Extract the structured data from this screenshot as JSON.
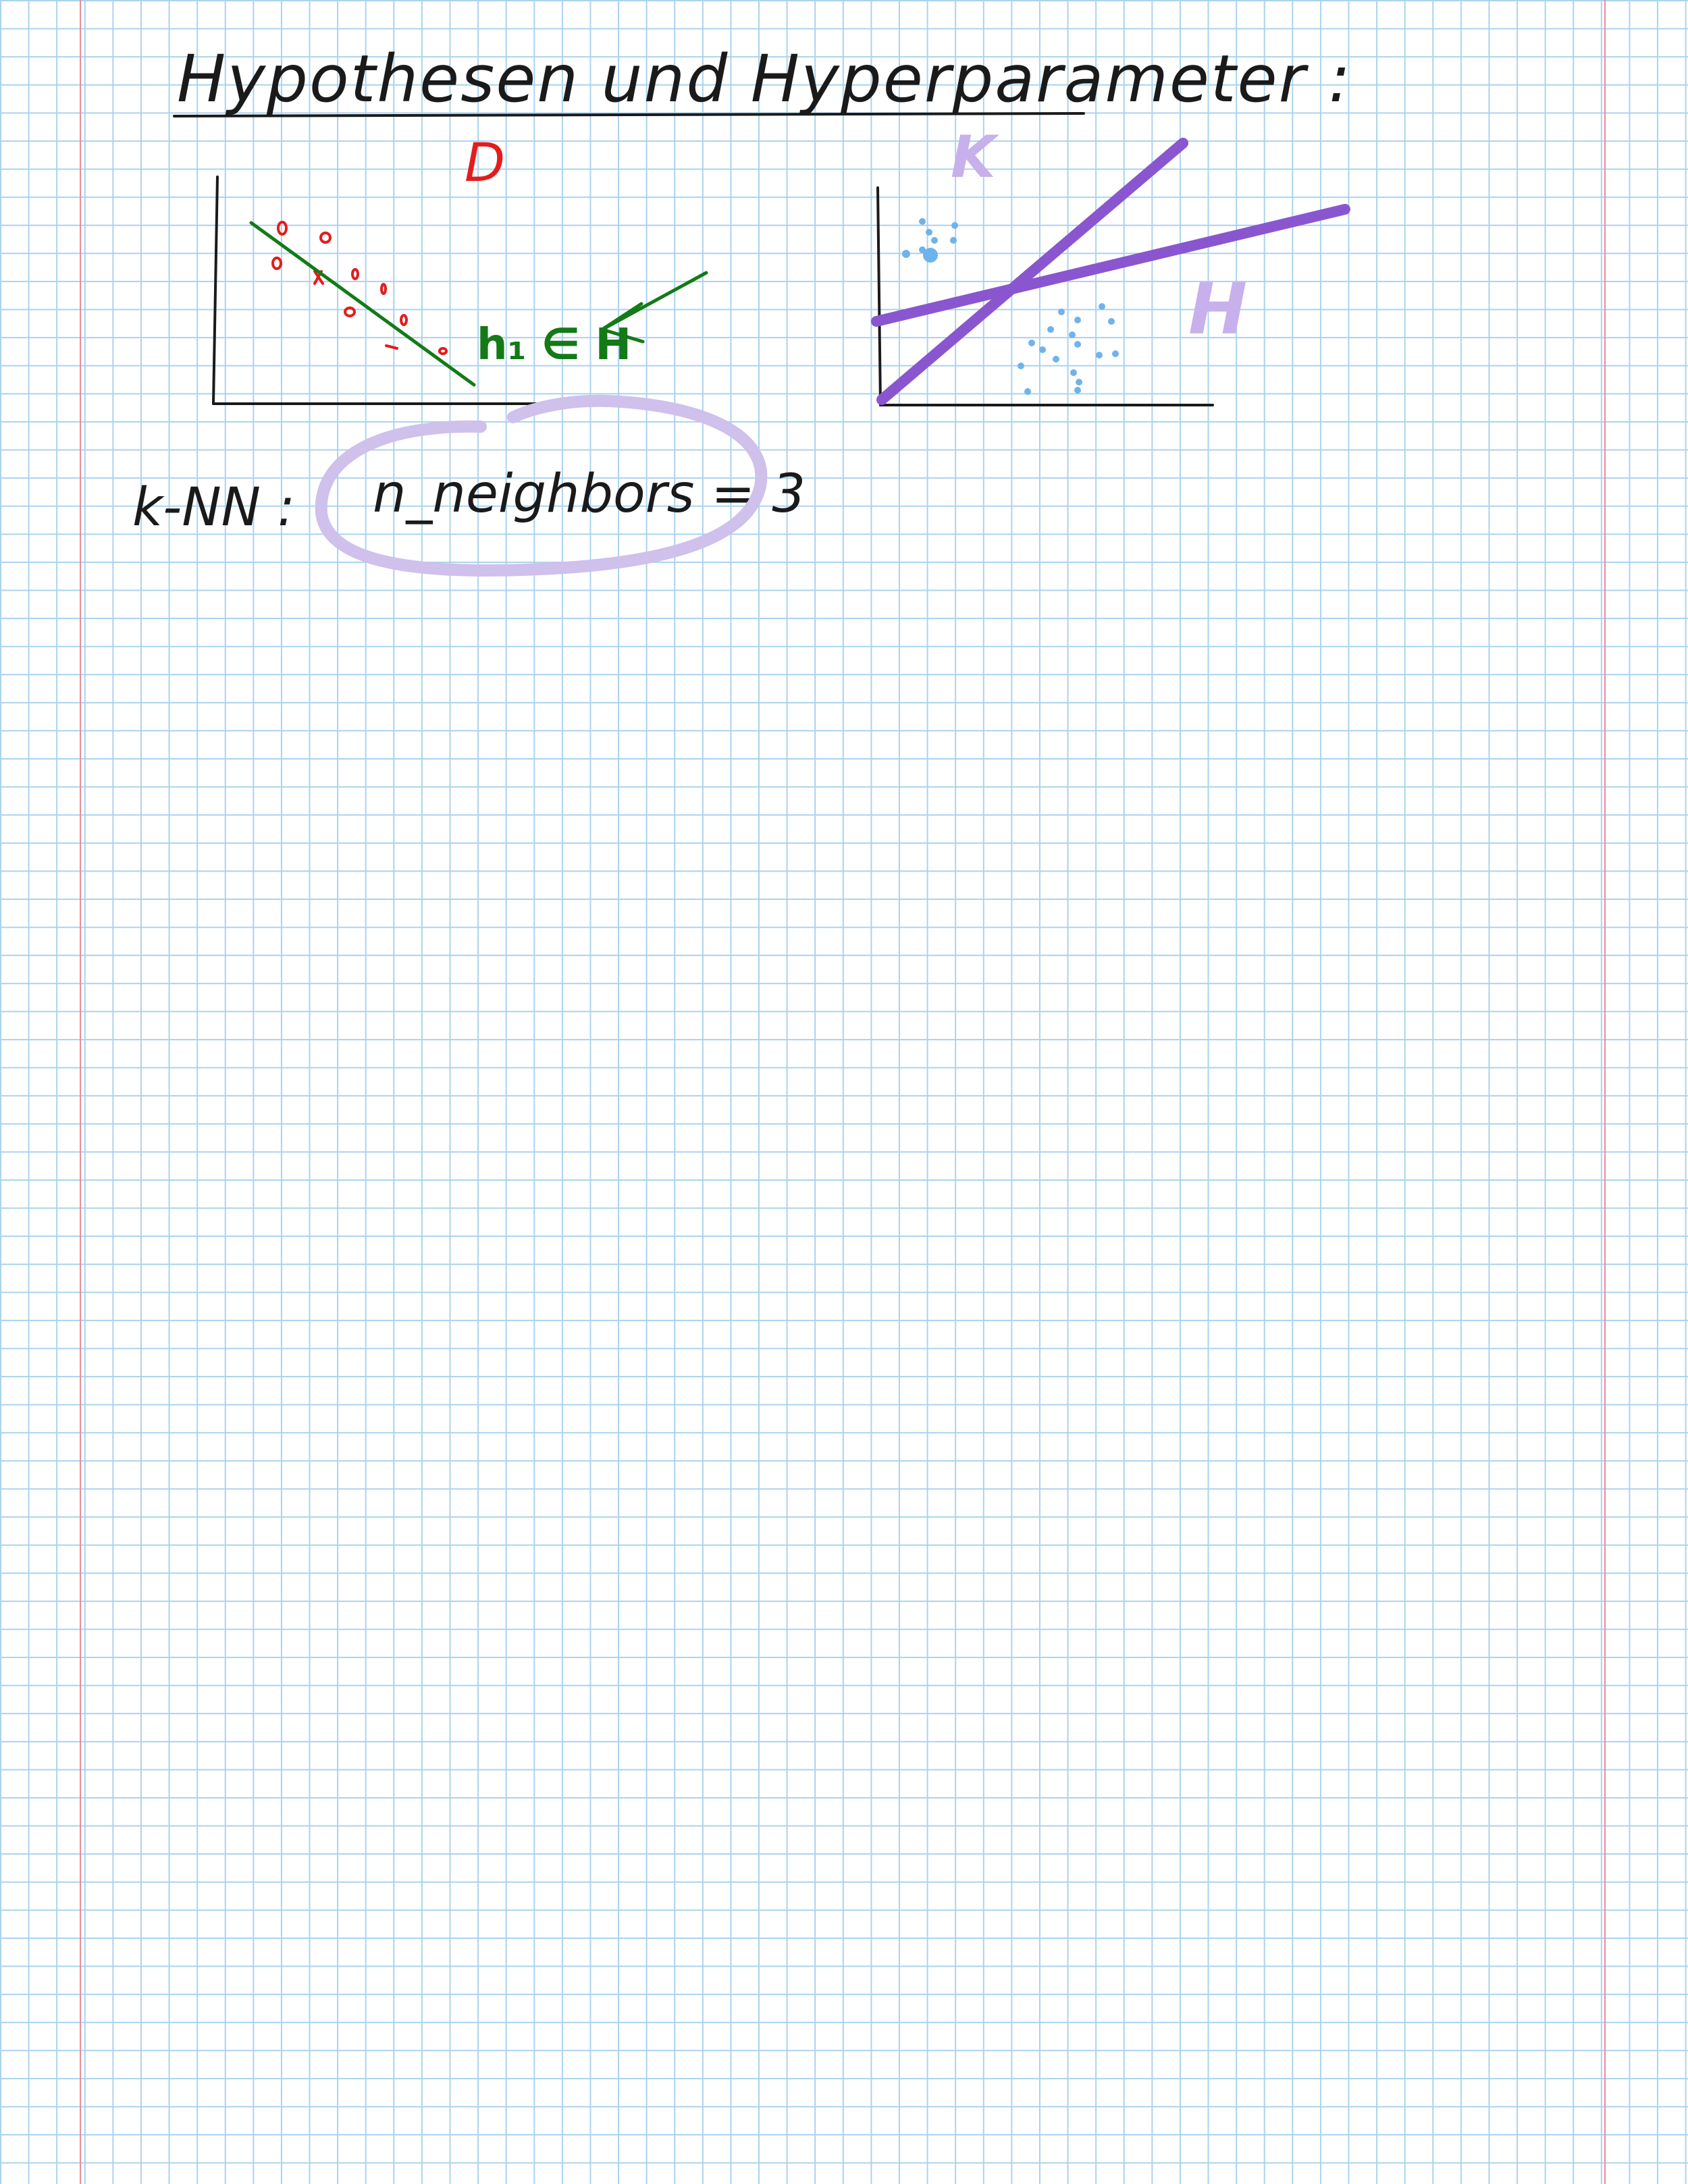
{
  "page": {
    "title": "Hypothesen und Hyperparameter :",
    "grid_color": "#a9d3ee",
    "margin_color": "#e88c9c"
  },
  "left_sketch": {
    "dataset_label": "D",
    "dataset_color": "#e21d1d",
    "hypothesis_label": "h₁ ∈ H",
    "hypothesis_color": "#137a17"
  },
  "right_sketch": {
    "hypothesis_space_label": "H",
    "k_label": "K",
    "point_color": "#6fb3ec",
    "line_color": "#8a56cf",
    "label_color": "#c7b0ec"
  },
  "knn": {
    "label": "k-NN :",
    "parameter": "n_neighbors = 3",
    "circle_color": "#cfc0ec"
  }
}
